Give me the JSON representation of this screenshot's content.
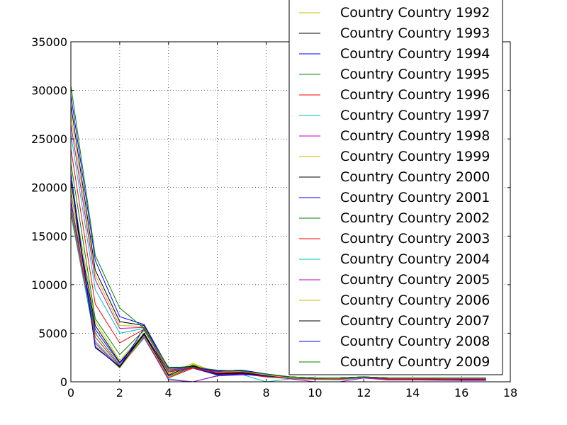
{
  "chart_data": {
    "type": "line",
    "title": "",
    "xlabel": "",
    "ylabel": "",
    "xlim": [
      0,
      18
    ],
    "ylim": [
      0,
      35000
    ],
    "xticks": [
      0,
      2,
      4,
      6,
      8,
      10,
      12,
      14,
      16,
      18
    ],
    "yticks": [
      0,
      5000,
      10000,
      15000,
      20000,
      25000,
      30000,
      35000
    ],
    "xtick_labels": [
      "0",
      "2",
      "4",
      "6",
      "8",
      "10",
      "12",
      "14",
      "16",
      "18"
    ],
    "ytick_labels": [
      "0",
      "5000",
      "10000",
      "15000",
      "20000",
      "25000",
      "30000",
      "35000"
    ],
    "grid": true,
    "legend_position": "top-right",
    "x": [
      0,
      1,
      2,
      3,
      4,
      5,
      6,
      7,
      8,
      9,
      10,
      11,
      12,
      13,
      14,
      15,
      16,
      17
    ],
    "series": [
      {
        "name": "Country Country 1992",
        "color": "#bfbf00",
        "values": [
          20500,
          6200,
          2200,
          5000,
          800,
          1900,
          900,
          1000,
          700,
          400,
          350,
          300,
          500,
          250,
          250,
          220,
          200,
          200
        ]
      },
      {
        "name": "Country Country 1993",
        "color": "#000000",
        "values": [
          19500,
          5800,
          2000,
          4900,
          700,
          1700,
          850,
          950,
          650,
          380,
          320,
          280,
          480,
          230,
          230,
          210,
          190,
          190
        ]
      },
      {
        "name": "Country Country 1994",
        "color": "#0000ff",
        "values": [
          18500,
          5400,
          1900,
          4800,
          600,
          1600,
          800,
          900,
          600,
          360,
          300,
          260,
          460,
          220,
          220,
          200,
          180,
          180
        ]
      },
      {
        "name": "Country Country 1995",
        "color": "#008000",
        "values": [
          18000,
          5000,
          1700,
          4700,
          500,
          1500,
          750,
          850,
          550,
          340,
          280,
          240,
          440,
          210,
          210,
          190,
          170,
          170
        ]
      },
      {
        "name": "Country Country 1996",
        "color": "#ff0000",
        "values": [
          17500,
          4600,
          1600,
          4600,
          400,
          1400,
          700,
          800,
          500,
          320,
          260,
          220,
          420,
          200,
          200,
          180,
          160,
          160
        ]
      },
      {
        "name": "Country Country 1997",
        "color": "#00bfbf",
        "values": [
          17200,
          4200,
          1500,
          4500,
          300,
          0,
          650,
          750,
          0,
          300,
          240,
          200,
          400,
          190,
          190,
          170,
          150,
          150
        ]
      },
      {
        "name": "Country Country 1998",
        "color": "#bf00bf",
        "values": [
          18800,
          4000,
          1450,
          4600,
          200,
          0,
          600,
          700,
          700,
          290,
          0,
          0,
          390,
          180,
          180,
          160,
          140,
          140
        ]
      },
      {
        "name": "Country Country 1999",
        "color": "#bfbf00",
        "values": [
          19800,
          3800,
          1400,
          4700,
          500,
          1800,
          1000,
          1000,
          700,
          400,
          300,
          300,
          500,
          300,
          300,
          300,
          300,
          300
        ]
      },
      {
        "name": "Country Country 2000",
        "color": "#000000",
        "values": [
          20800,
          3600,
          1500,
          5000,
          1000,
          1500,
          800,
          900,
          700,
          500,
          400,
          400,
          500,
          300,
          300,
          300,
          300,
          300
        ]
      },
      {
        "name": "Country Country 2001",
        "color": "#0000ff",
        "values": [
          21500,
          3500,
          1600,
          5500,
          1200,
          1400,
          700,
          800,
          600,
          500,
          400,
          400,
          500,
          300,
          300,
          300,
          250,
          250
        ]
      },
      {
        "name": "Country Country 2002",
        "color": "#008000",
        "values": [
          22500,
          6500,
          2800,
          5300,
          1300,
          1500,
          1100,
          1100,
          700,
          400,
          300,
          300,
          500,
          300,
          300,
          300,
          300,
          300
        ]
      },
      {
        "name": "Country Country 2003",
        "color": "#ff0000",
        "values": [
          24000,
          8000,
          4000,
          5400,
          1000,
          1400,
          900,
          1000,
          700,
          400,
          300,
          300,
          500,
          300,
          300,
          300,
          300,
          300
        ]
      },
      {
        "name": "Country Country 2004",
        "color": "#00bfbf",
        "values": [
          25500,
          9500,
          5000,
          5500,
          1100,
          1500,
          1000,
          1100,
          700,
          400,
          400,
          400,
          500,
          400,
          400,
          400,
          400,
          400
        ]
      },
      {
        "name": "Country Country 2005",
        "color": "#bf00bf",
        "values": [
          26500,
          10500,
          5500,
          5600,
          1200,
          1500,
          1000,
          1100,
          700,
          400,
          400,
          400,
          500,
          400,
          400,
          400,
          400,
          400
        ]
      },
      {
        "name": "Country Country 2006",
        "color": "#bfbf00",
        "values": [
          27500,
          11000,
          5800,
          5700,
          1300,
          1600,
          1100,
          1100,
          700,
          400,
          400,
          400,
          500,
          400,
          400,
          400,
          400,
          400
        ]
      },
      {
        "name": "Country Country 2007",
        "color": "#000000",
        "values": [
          28500,
          11500,
          6200,
          5800,
          1400,
          1600,
          1100,
          1200,
          800,
          500,
          400,
          400,
          500,
          400,
          400,
          400,
          400,
          400
        ]
      },
      {
        "name": "Country Country 2008",
        "color": "#0000ff",
        "values": [
          29500,
          12500,
          6700,
          5900,
          1400,
          1500,
          1100,
          1200,
          800,
          500,
          400,
          400,
          500,
          400,
          400,
          400,
          400,
          400
        ]
      },
      {
        "name": "Country Country 2009",
        "color": "#008000",
        "values": [
          30500,
          13000,
          7600,
          5500,
          1500,
          1500,
          1200,
          1100,
          800,
          500,
          400,
          400,
          500,
          400,
          400,
          400,
          400,
          400
        ]
      }
    ]
  }
}
